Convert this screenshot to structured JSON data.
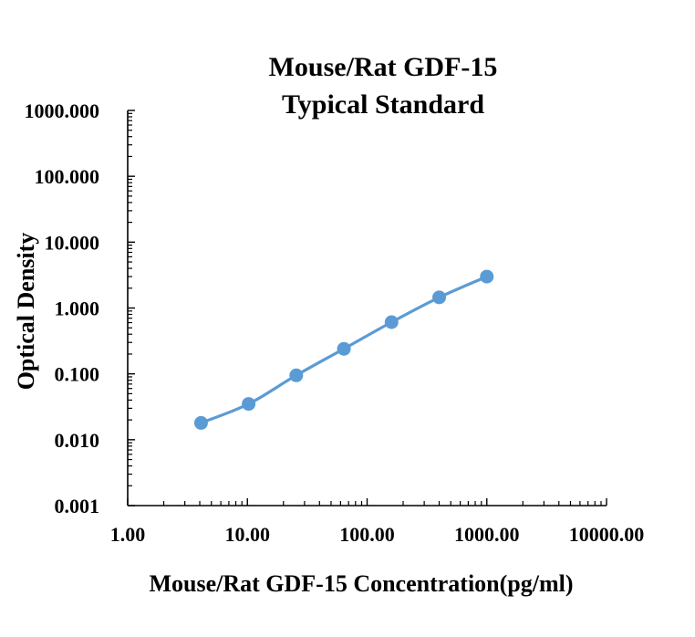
{
  "chart_data": {
    "type": "line",
    "title_lines": [
      "Mouse/Rat GDF-15",
      "Typical Standard"
    ],
    "xlabel": "Mouse/Rat GDF-15 Concentration(pg/ml)",
    "ylabel": "Optical Density",
    "x_scale": "log",
    "y_scale": "log",
    "xlim": [
      1,
      10000
    ],
    "ylim": [
      0.001,
      1000
    ],
    "x_tick_values": [
      1,
      10,
      100,
      1000,
      10000
    ],
    "x_tick_labels": [
      "1.00",
      "10.00",
      "100.00",
      "1000.00",
      "10000.00"
    ],
    "y_tick_values": [
      0.001,
      0.01,
      0.1,
      1,
      10,
      100,
      1000
    ],
    "y_tick_labels": [
      "0.001",
      "0.010",
      "0.100",
      "1.000",
      "10.000",
      "100.000",
      "1000.000"
    ],
    "grid": false,
    "legend": "none",
    "series_color": "#5b9bd5",
    "series": [
      {
        "x": [
          4.1,
          10.24,
          25.6,
          64,
          160,
          400,
          1000
        ],
        "y": [
          0.018,
          0.035,
          0.095,
          0.24,
          0.61,
          1.45,
          3.0
        ]
      }
    ]
  }
}
